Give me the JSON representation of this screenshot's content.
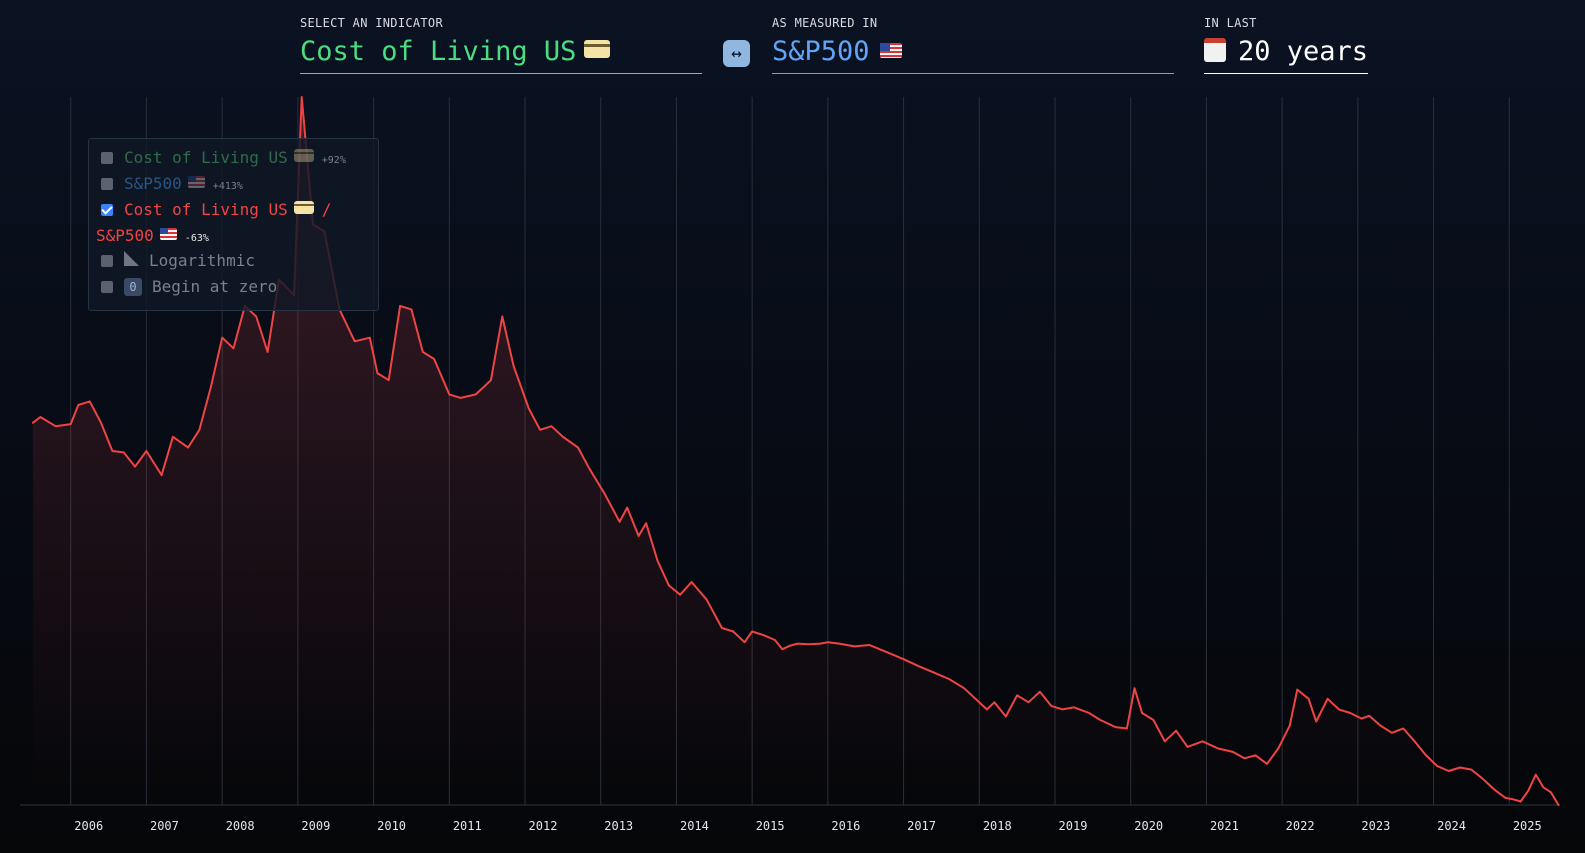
{
  "controls": {
    "indicator_label": "SELECT AN INDICATOR",
    "indicator_value": "Cost of Living US",
    "measure_label": "AS MEASURED IN",
    "measure_value": "S&P500",
    "range_label": "IN LAST",
    "range_value": "20 years",
    "swap_icon": "left-right-arrow-icon"
  },
  "legend": {
    "items": [
      {
        "label": "Cost of Living US",
        "icon": "credit-card-icon",
        "change": "+92%",
        "checked": false
      },
      {
        "label": "S&P500",
        "icon": "us-flag-icon",
        "change": "+413%",
        "checked": false
      },
      {
        "label_line1": "Cost of Living US",
        "separator": "/",
        "label_line2": "S&P500",
        "change": "-63%",
        "checked": true
      }
    ],
    "logarithmic": {
      "label": "Logarithmic",
      "icon": "ruler-icon",
      "checked": false
    },
    "begin_at_zero": {
      "label": "Begin at zero",
      "icon": "zero-icon",
      "checked": false
    }
  },
  "colors": {
    "indicator": "#4ade80",
    "measure": "#60a5fa",
    "ratio": "#ef4444",
    "grid": "#2a2f3a"
  },
  "chart_data": {
    "type": "area",
    "series": [
      {
        "name": "Cost of Living US / S&P500",
        "values": [
          [
            2005.5,
            0.54
          ],
          [
            2005.6,
            0.548
          ],
          [
            2005.8,
            0.535
          ],
          [
            2006.0,
            0.538
          ],
          [
            2006.1,
            0.565
          ],
          [
            2006.25,
            0.57
          ],
          [
            2006.4,
            0.54
          ],
          [
            2006.55,
            0.5
          ],
          [
            2006.7,
            0.498
          ],
          [
            2006.85,
            0.478
          ],
          [
            2007.0,
            0.5
          ],
          [
            2007.2,
            0.466
          ],
          [
            2007.35,
            0.52
          ],
          [
            2007.55,
            0.505
          ],
          [
            2007.7,
            0.53
          ],
          [
            2007.85,
            0.59
          ],
          [
            2008.0,
            0.66
          ],
          [
            2008.15,
            0.645
          ],
          [
            2008.3,
            0.705
          ],
          [
            2008.45,
            0.69
          ],
          [
            2008.6,
            0.64
          ],
          [
            2008.75,
            0.742
          ],
          [
            2008.95,
            0.72
          ],
          [
            2009.05,
            1.0
          ],
          [
            2009.2,
            0.82
          ],
          [
            2009.35,
            0.81
          ],
          [
            2009.55,
            0.7
          ],
          [
            2009.75,
            0.655
          ],
          [
            2009.95,
            0.66
          ],
          [
            2010.05,
            0.61
          ],
          [
            2010.2,
            0.6
          ],
          [
            2010.35,
            0.705
          ],
          [
            2010.5,
            0.7
          ],
          [
            2010.65,
            0.64
          ],
          [
            2010.8,
            0.63
          ],
          [
            2011.0,
            0.58
          ],
          [
            2011.15,
            0.575
          ],
          [
            2011.35,
            0.58
          ],
          [
            2011.55,
            0.6
          ],
          [
            2011.7,
            0.69
          ],
          [
            2011.85,
            0.62
          ],
          [
            2012.05,
            0.56
          ],
          [
            2012.2,
            0.53
          ],
          [
            2012.35,
            0.535
          ],
          [
            2012.5,
            0.52
          ],
          [
            2012.7,
            0.505
          ],
          [
            2012.85,
            0.475
          ],
          [
            2013.05,
            0.44
          ],
          [
            2013.25,
            0.4
          ],
          [
            2013.35,
            0.42
          ],
          [
            2013.5,
            0.38
          ],
          [
            2013.6,
            0.398
          ],
          [
            2013.75,
            0.345
          ],
          [
            2013.9,
            0.31
          ],
          [
            2014.05,
            0.297
          ],
          [
            2014.2,
            0.315
          ],
          [
            2014.4,
            0.29
          ],
          [
            2014.6,
            0.25
          ],
          [
            2014.75,
            0.245
          ],
          [
            2014.9,
            0.23
          ],
          [
            2015.0,
            0.245
          ],
          [
            2015.15,
            0.24
          ],
          [
            2015.3,
            0.233
          ],
          [
            2015.4,
            0.22
          ],
          [
            2015.5,
            0.225
          ],
          [
            2015.6,
            0.228
          ],
          [
            2015.75,
            0.227
          ],
          [
            2015.9,
            0.228
          ],
          [
            2016.0,
            0.23
          ],
          [
            2016.15,
            0.228
          ],
          [
            2016.35,
            0.224
          ],
          [
            2016.55,
            0.226
          ],
          [
            2016.8,
            0.215
          ],
          [
            2017.0,
            0.206
          ],
          [
            2017.2,
            0.196
          ],
          [
            2017.4,
            0.187
          ],
          [
            2017.6,
            0.178
          ],
          [
            2017.8,
            0.165
          ],
          [
            2017.95,
            0.15
          ],
          [
            2018.1,
            0.135
          ],
          [
            2018.2,
            0.145
          ],
          [
            2018.35,
            0.125
          ],
          [
            2018.5,
            0.155
          ],
          [
            2018.65,
            0.145
          ],
          [
            2018.8,
            0.16
          ],
          [
            2018.95,
            0.14
          ],
          [
            2019.1,
            0.135
          ],
          [
            2019.25,
            0.138
          ],
          [
            2019.45,
            0.13
          ],
          [
            2019.6,
            0.12
          ],
          [
            2019.8,
            0.11
          ],
          [
            2019.95,
            0.108
          ],
          [
            2020.05,
            0.165
          ],
          [
            2020.15,
            0.13
          ],
          [
            2020.3,
            0.12
          ],
          [
            2020.45,
            0.09
          ],
          [
            2020.6,
            0.105
          ],
          [
            2020.75,
            0.082
          ],
          [
            2020.95,
            0.09
          ],
          [
            2021.15,
            0.08
          ],
          [
            2021.35,
            0.075
          ],
          [
            2021.5,
            0.066
          ],
          [
            2021.65,
            0.07
          ],
          [
            2021.8,
            0.058
          ],
          [
            2021.95,
            0.08
          ],
          [
            2022.1,
            0.112
          ],
          [
            2022.2,
            0.163
          ],
          [
            2022.35,
            0.15
          ],
          [
            2022.45,
            0.118
          ],
          [
            2022.6,
            0.15
          ],
          [
            2022.75,
            0.135
          ],
          [
            2022.9,
            0.13
          ],
          [
            2023.05,
            0.122
          ],
          [
            2023.15,
            0.126
          ],
          [
            2023.3,
            0.112
          ],
          [
            2023.45,
            0.102
          ],
          [
            2023.6,
            0.108
          ],
          [
            2023.75,
            0.09
          ],
          [
            2023.9,
            0.07
          ],
          [
            2024.05,
            0.055
          ],
          [
            2024.2,
            0.048
          ],
          [
            2024.35,
            0.053
          ],
          [
            2024.5,
            0.05
          ],
          [
            2024.65,
            0.037
          ],
          [
            2024.8,
            0.022
          ],
          [
            2024.95,
            0.01
          ],
          [
            2025.05,
            0.008
          ],
          [
            2025.15,
            0.005
          ],
          [
            2025.25,
            0.02
          ],
          [
            2025.35,
            0.043
          ],
          [
            2025.45,
            0.025
          ],
          [
            2025.55,
            0.018
          ],
          [
            2025.65,
            0.0
          ]
        ]
      }
    ],
    "xlabel": "",
    "ylabel": "",
    "x_ticks": [
      "2006",
      "2007",
      "2008",
      "2009",
      "2010",
      "2011",
      "2012",
      "2013",
      "2014",
      "2015",
      "2016",
      "2017",
      "2018",
      "2019",
      "2020",
      "2021",
      "2022",
      "2023",
      "2024",
      "2025"
    ],
    "xlim": [
      2005.33,
      2025.67
    ],
    "ylim": [
      0,
      1
    ],
    "y_ticks_shown": false,
    "grid": "vertical",
    "legend_position": "top-left"
  }
}
